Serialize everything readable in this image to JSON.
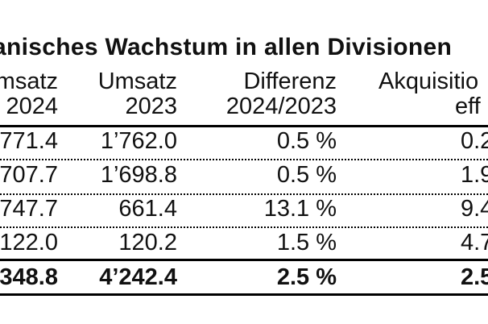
{
  "title": {
    "text": "anisches Wachstum in allen Divisionen"
  },
  "table": {
    "headers": [
      {
        "line1": "msatz",
        "line2": "2024"
      },
      {
        "line1": "Umsatz",
        "line2": "2023"
      },
      {
        "line1": "Differenz",
        "line2": "2024/2023"
      },
      {
        "line1": "Akquisitio",
        "line2": "eff"
      }
    ],
    "rows": [
      {
        "c1": "771.4",
        "c2": "1’762.0",
        "c3": "0.5 %",
        "c4": "0.2"
      },
      {
        "c1": "707.7",
        "c2": "1’698.8",
        "c3": "0.5 %",
        "c4": "1.9"
      },
      {
        "c1": "747.7",
        "c2": "661.4",
        "c3": "13.1 %",
        "c4": "9.4"
      },
      {
        "c1": "122.0",
        "c2": "120.2",
        "c3": "1.5 %",
        "c4": "4.7"
      }
    ],
    "total": {
      "c1": "348.8",
      "c2": "4’242.4",
      "c3": "2.5 %",
      "c4": "2.5"
    }
  },
  "colors": {
    "background": "#ffffff",
    "text": "#111111",
    "rule": "#000000"
  }
}
